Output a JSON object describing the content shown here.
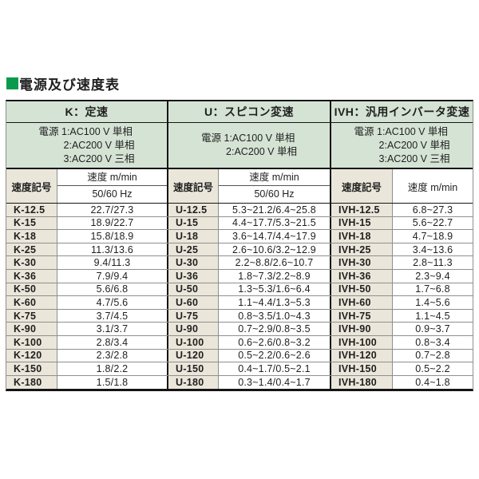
{
  "title": "電源及び速度表",
  "colors": {
    "accent_green": "#089b4b",
    "header_green_bg": "#d5e3d4",
    "code_beige_bg": "#eae6da",
    "border_dark": "#151515",
    "border_light": "#8f8f8f"
  },
  "table": {
    "groups": [
      {
        "header": "K：定速",
        "power_lines": [
          "電源 1:AC100 V 単相",
          "2:AC200 V 単相",
          "3:AC200 V 三相"
        ],
        "code_header": "速度記号",
        "speed_header": "速度 m/min",
        "speed_subheader": "50/60 Hz"
      },
      {
        "header": "U：スピコン変速",
        "power_lines": [
          "電源 1:AC100 V 単相",
          "2:AC200 V 単相"
        ],
        "code_header": "速度記号",
        "speed_header": "速度 m/min",
        "speed_subheader": "50/60 Hz"
      },
      {
        "header": "IVH：汎用インバータ変速",
        "power_lines": [
          "電源 1:AC100 V 単相",
          "2:AC200 V 単相",
          "3:AC200 V 三相"
        ],
        "code_header": "速度記号",
        "speed_header": "速度 m/min",
        "speed_subheader": ""
      }
    ],
    "rows": [
      {
        "k_code": "K-12.5",
        "k_speed": "22.7/27.3",
        "u_code": "U-12.5",
        "u_speed": "5.3~21.2/6.4~25.8",
        "ivh_code": "IVH-12.5",
        "ivh_speed": "6.8~27.3"
      },
      {
        "k_code": "K-15",
        "k_speed": "18.9/22.7",
        "u_code": "U-15",
        "u_speed": "4.4~17.7/5.3~21.5",
        "ivh_code": "IVH-15",
        "ivh_speed": "5.6~22.7"
      },
      {
        "k_code": "K-18",
        "k_speed": "15.8/18.9",
        "u_code": "U-18",
        "u_speed": "3.6~14.7/4.4~17.9",
        "ivh_code": "IVH-18",
        "ivh_speed": "4.7~18.9"
      },
      {
        "k_code": "K-25",
        "k_speed": "11.3/13.6",
        "u_code": "U-25",
        "u_speed": "2.6~10.6/3.2~12.9",
        "ivh_code": "IVH-25",
        "ivh_speed": "3.4~13.6"
      },
      {
        "k_code": "K-30",
        "k_speed": "9.4/11.3",
        "u_code": "U-30",
        "u_speed": "2.2~8.8/2.6~10.7",
        "ivh_code": "IVH-30",
        "ivh_speed": "2.8~11.3"
      },
      {
        "k_code": "K-36",
        "k_speed": "7.9/9.4",
        "u_code": "U-36",
        "u_speed": "1.8~7.3/2.2~8.9",
        "ivh_code": "IVH-36",
        "ivh_speed": "2.3~9.4"
      },
      {
        "k_code": "K-50",
        "k_speed": "5.6/6.8",
        "u_code": "U-50",
        "u_speed": "1.3~5.3/1.6~6.4",
        "ivh_code": "IVH-50",
        "ivh_speed": "1.7~6.8"
      },
      {
        "k_code": "K-60",
        "k_speed": "4.7/5.6",
        "u_code": "U-60",
        "u_speed": "1.1~4.4/1.3~5.3",
        "ivh_code": "IVH-60",
        "ivh_speed": "1.4~5.6"
      },
      {
        "k_code": "K-75",
        "k_speed": "3.7/4.5",
        "u_code": "U-75",
        "u_speed": "0.8~3.5/1.0~4.3",
        "ivh_code": "IVH-75",
        "ivh_speed": "1.1~4.5"
      },
      {
        "k_code": "K-90",
        "k_speed": "3.1/3.7",
        "u_code": "U-90",
        "u_speed": "0.7~2.9/0.8~3.5",
        "ivh_code": "IVH-90",
        "ivh_speed": "0.9~3.7"
      },
      {
        "k_code": "K-100",
        "k_speed": "2.8/3.4",
        "u_code": "U-100",
        "u_speed": "0.6~2.6/0.8~3.2",
        "ivh_code": "IVH-100",
        "ivh_speed": "0.8~3.4"
      },
      {
        "k_code": "K-120",
        "k_speed": "2.3/2.8",
        "u_code": "U-120",
        "u_speed": "0.5~2.2/0.6~2.6",
        "ivh_code": "IVH-120",
        "ivh_speed": "0.7~2.8"
      },
      {
        "k_code": "K-150",
        "k_speed": "1.8/2.2",
        "u_code": "U-150",
        "u_speed": "0.4~1.7/0.5~2.1",
        "ivh_code": "IVH-150",
        "ivh_speed": "0.5~2.2"
      },
      {
        "k_code": "K-180",
        "k_speed": "1.5/1.8",
        "u_code": "U-180",
        "u_speed": "0.3~1.4/0.4~1.7",
        "ivh_code": "IVH-180",
        "ivh_speed": "0.4~1.8"
      }
    ]
  }
}
